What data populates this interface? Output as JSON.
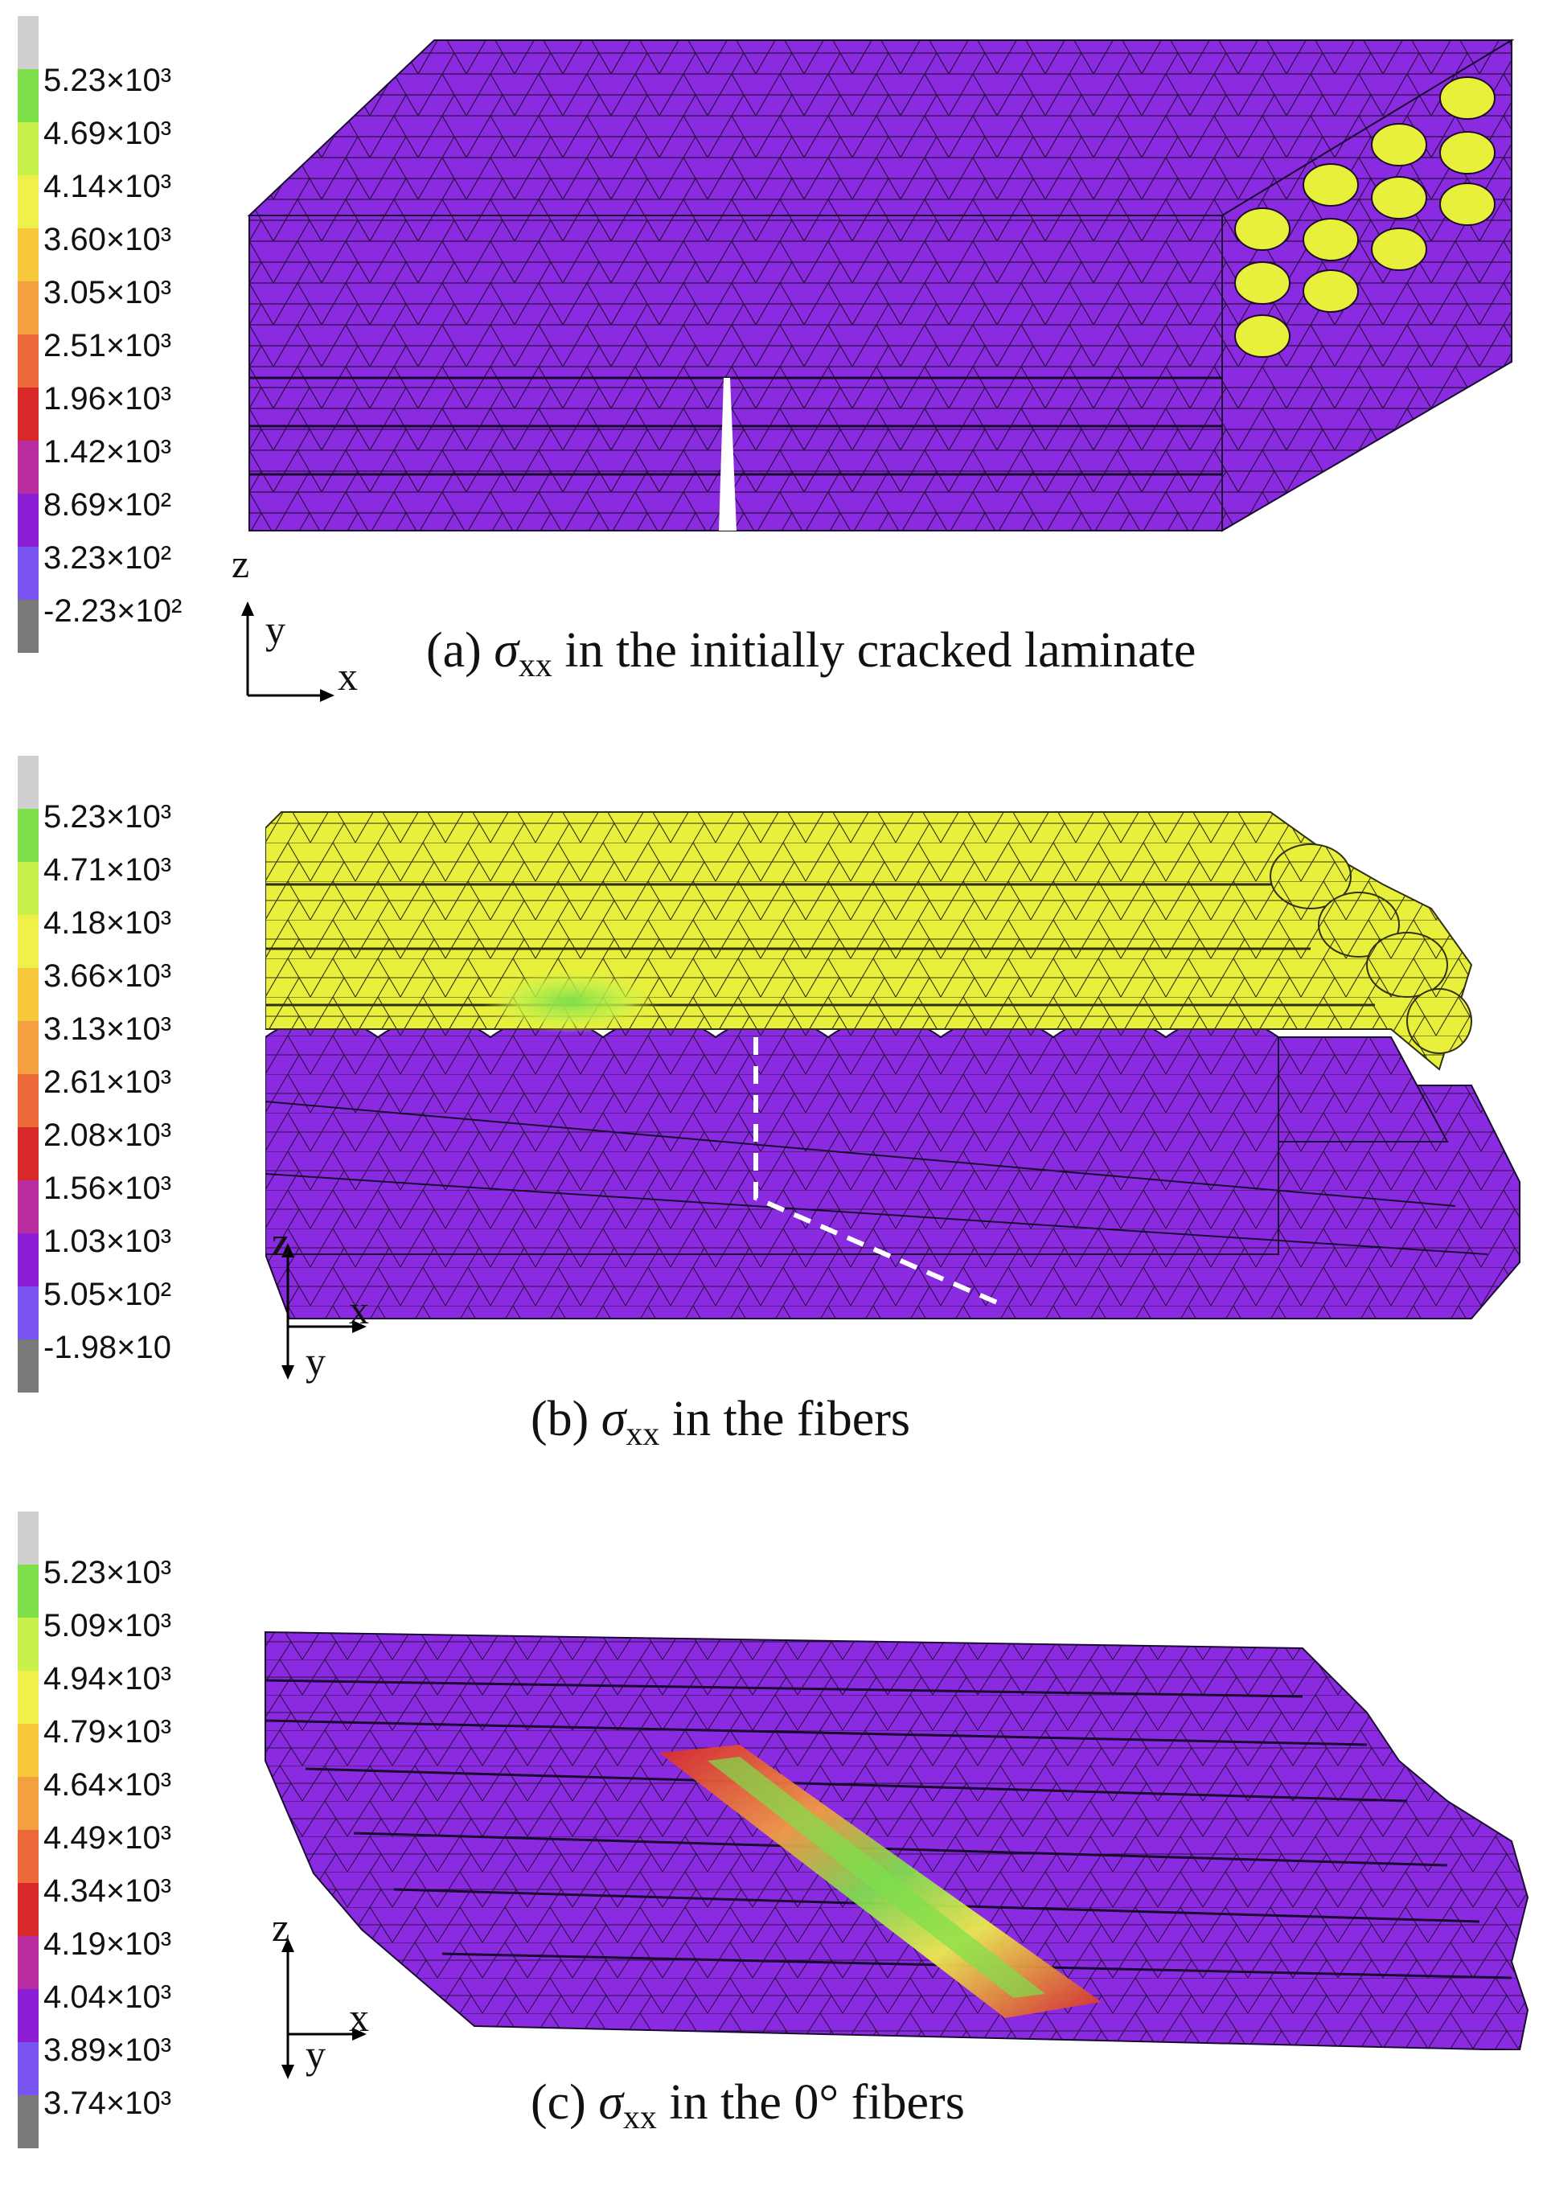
{
  "panels": [
    {
      "colorbar": {
        "labels": [
          "5.23×10³",
          "4.69×10³",
          "4.14×10³",
          "3.60×10³",
          "3.05×10³",
          "2.51×10³",
          "1.96×10³",
          "1.42×10³",
          "8.69×10²",
          "3.23×10²",
          "-2.23×10²"
        ],
        "colors": [
          "#cfcfcf",
          "#7de04a",
          "#c8f04a",
          "#f0f04a",
          "#f8c83c",
          "#f4a040",
          "#ec6a3a",
          "#d82828",
          "#b82ea0",
          "#8c1fd6",
          "#7a55f0",
          "#7a7a7a"
        ]
      },
      "caption": {
        "prefix": "(a) ",
        "symbol": "σ",
        "sub": "xx",
        "suffix": " in the initially cracked laminate"
      },
      "axes": {
        "z": "z",
        "y": "y",
        "x": "x"
      }
    },
    {
      "colorbar": {
        "labels": [
          "5.23×10³",
          "4.71×10³",
          "4.18×10³",
          "3.66×10³",
          "3.13×10³",
          "2.61×10³",
          "2.08×10³",
          "1.56×10³",
          "1.03×10³",
          "5.05×10²",
          "-1.98×10"
        ],
        "colors": [
          "#cfcfcf",
          "#7de04a",
          "#c8f04a",
          "#f0f04a",
          "#f8c83c",
          "#f4a040",
          "#ec6a3a",
          "#d82828",
          "#b82ea0",
          "#8c1fd6",
          "#7a55f0",
          "#7a7a7a"
        ]
      },
      "caption": {
        "prefix": "(b) ",
        "symbol": "σ",
        "sub": "xx",
        "suffix": " in the fibers"
      },
      "axes": {
        "z": "z",
        "y": "y",
        "x": "x"
      }
    },
    {
      "colorbar": {
        "labels": [
          "5.23×10³",
          "5.09×10³",
          "4.94×10³",
          "4.79×10³",
          "4.64×10³",
          "4.49×10³",
          "4.34×10³",
          "4.19×10³",
          "4.04×10³",
          "3.89×10³",
          "3.74×10³"
        ],
        "colors": [
          "#cfcfcf",
          "#7de04a",
          "#c8f04a",
          "#f0f04a",
          "#f8c83c",
          "#f4a040",
          "#ec6a3a",
          "#d82828",
          "#b82ea0",
          "#8c1fd6",
          "#7a55f0",
          "#7a7a7a"
        ]
      },
      "caption": {
        "prefix": "(c) ",
        "symbol": "σ",
        "sub": "xx",
        "suffix": " in the 0° fibers"
      },
      "axes": {
        "z": "z",
        "y": "y",
        "x": "x"
      }
    }
  ],
  "colors": {
    "matrix": "#8a2be2",
    "fiber_high": "#e8f03c",
    "fiber_low": "#8a2be2",
    "fiber_mid": "#9a2cc4",
    "hot": "#f4a040",
    "peak": "#7de04a"
  }
}
